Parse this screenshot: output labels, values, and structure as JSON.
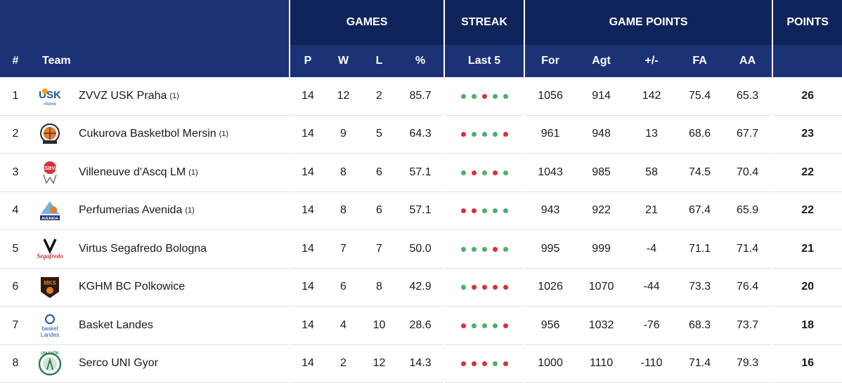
{
  "colors": {
    "header_dark": "#10245c",
    "header_mid": "#1b3275",
    "win": "#4caf6e",
    "loss": "#d6323c"
  },
  "groups": {
    "games": "GAMES",
    "streak": "STREAK",
    "game_points": "GAME POINTS",
    "points": "POINTS"
  },
  "columns": {
    "rank": "#",
    "team": "Team",
    "p": "P",
    "w": "W",
    "l": "L",
    "pct": "%",
    "last5": "Last 5",
    "for": "For",
    "agt": "Agt",
    "diff": "+/-",
    "fa": "FA",
    "aa": "AA",
    "points": ""
  },
  "rows": [
    {
      "rank": "1",
      "team": "ZVVZ USK Praha",
      "note": "(1)",
      "logo_icon": "usk-praha-logo",
      "p": "14",
      "w": "12",
      "l": "2",
      "pct": "85.7",
      "streak": [
        "W",
        "W",
        "L",
        "W",
        "W"
      ],
      "for": "1056",
      "agt": "914",
      "diff": "142",
      "fa": "75.4",
      "aa": "65.3",
      "points": "26"
    },
    {
      "rank": "2",
      "team": "Cukurova Basketbol Mersin",
      "note": "(1)",
      "logo_icon": "cukurova-logo",
      "p": "14",
      "w": "9",
      "l": "5",
      "pct": "64.3",
      "streak": [
        "L",
        "W",
        "W",
        "W",
        "L"
      ],
      "for": "961",
      "agt": "948",
      "diff": "13",
      "fa": "68.6",
      "aa": "67.7",
      "points": "23"
    },
    {
      "rank": "3",
      "team": "Villeneuve d'Ascq LM",
      "note": "(1)",
      "logo_icon": "villeneuve-logo",
      "p": "14",
      "w": "8",
      "l": "6",
      "pct": "57.1",
      "streak": [
        "W",
        "L",
        "W",
        "L",
        "W"
      ],
      "for": "1043",
      "agt": "985",
      "diff": "58",
      "fa": "74.5",
      "aa": "70.4",
      "points": "22"
    },
    {
      "rank": "4",
      "team": "Perfumerias Avenida",
      "note": "(1)",
      "logo_icon": "avenida-logo",
      "p": "14",
      "w": "8",
      "l": "6",
      "pct": "57.1",
      "streak": [
        "L",
        "L",
        "W",
        "W",
        "W"
      ],
      "for": "943",
      "agt": "922",
      "diff": "21",
      "fa": "67.4",
      "aa": "65.9",
      "points": "22"
    },
    {
      "rank": "5",
      "team": "Virtus Segafredo Bologna",
      "note": "",
      "logo_icon": "virtus-logo",
      "p": "14",
      "w": "7",
      "l": "7",
      "pct": "50.0",
      "streak": [
        "W",
        "W",
        "W",
        "L",
        "W"
      ],
      "for": "995",
      "agt": "999",
      "diff": "-4",
      "fa": "71.1",
      "aa": "71.4",
      "points": "21"
    },
    {
      "rank": "6",
      "team": "KGHM BC Polkowice",
      "note": "",
      "logo_icon": "polkowice-logo",
      "p": "14",
      "w": "6",
      "l": "8",
      "pct": "42.9",
      "streak": [
        "W",
        "L",
        "L",
        "L",
        "L"
      ],
      "for": "1026",
      "agt": "1070",
      "diff": "-44",
      "fa": "73.3",
      "aa": "76.4",
      "points": "20"
    },
    {
      "rank": "7",
      "team": "Basket Landes",
      "note": "",
      "logo_icon": "landes-logo",
      "p": "14",
      "w": "4",
      "l": "10",
      "pct": "28.6",
      "streak": [
        "L",
        "W",
        "W",
        "W",
        "L"
      ],
      "for": "956",
      "agt": "1032",
      "diff": "-76",
      "fa": "68.3",
      "aa": "73.7",
      "points": "18"
    },
    {
      "rank": "8",
      "team": "Serco UNI Gyor",
      "note": "",
      "logo_icon": "gyor-logo",
      "p": "14",
      "w": "2",
      "l": "12",
      "pct": "14.3",
      "streak": [
        "L",
        "L",
        "L",
        "W",
        "L"
      ],
      "for": "1000",
      "agt": "1110",
      "diff": "-110",
      "fa": "71.4",
      "aa": "79.3",
      "points": "16"
    }
  ]
}
